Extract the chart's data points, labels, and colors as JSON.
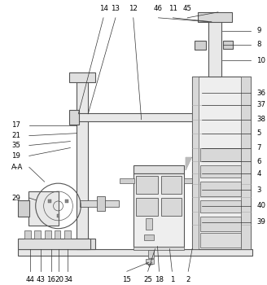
{
  "bg_color": "#ffffff",
  "line_color": "#666666",
  "top_labels": [
    "14",
    "13",
    "12",
    "46",
    "11",
    "45"
  ],
  "right_labels": [
    "9",
    "8",
    "10",
    "36",
    "37",
    "38",
    "5",
    "7",
    "6",
    "4",
    "3",
    "40",
    "39"
  ],
  "left_labels": [
    "17",
    "21",
    "35",
    "19",
    "A-A",
    "29"
  ],
  "bottom_labels": [
    "44",
    "43",
    "16",
    "20",
    "34",
    "15",
    "25",
    "18",
    "1",
    "2"
  ]
}
